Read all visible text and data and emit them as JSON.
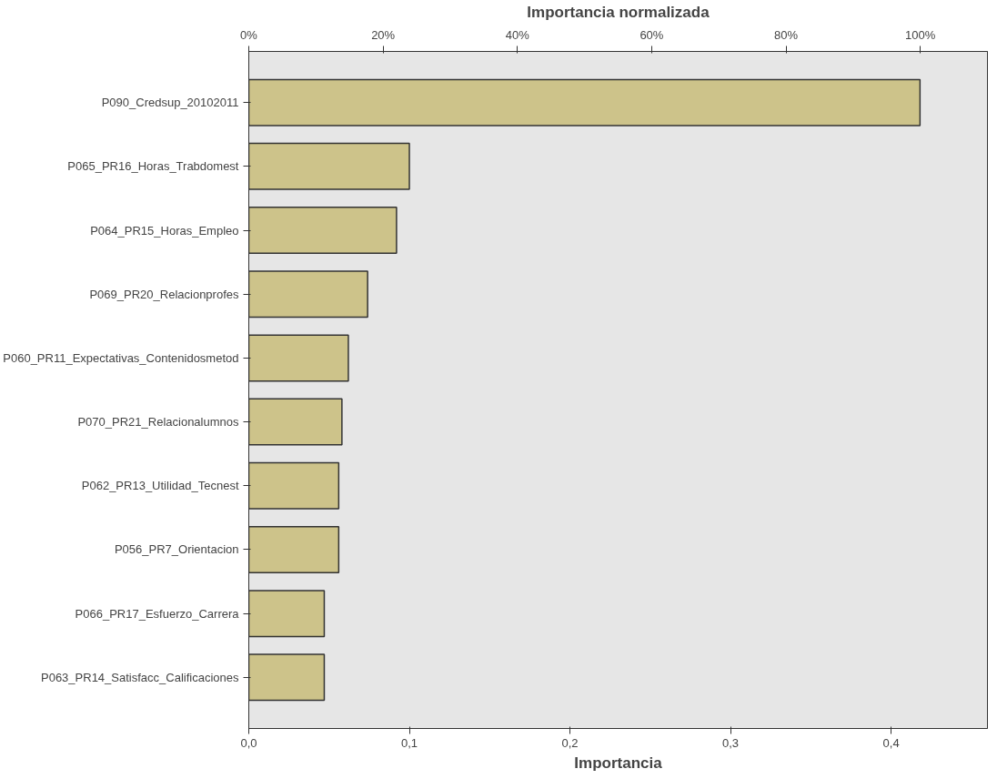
{
  "chart_data": {
    "type": "bar",
    "orientation": "horizontal",
    "x2label": "Importancia normalizada",
    "xlabel": "Importancia",
    "categories": [
      "P090_Credsup_20102011",
      "P065_PR16_Horas_Trabdomest",
      "P064_PR15_Horas_Empleo",
      "P069_PR20_Relacionprofes",
      "P060_PR11_Expectativas_Contenidosmetod",
      "P070_PR21_Relacionalumnos",
      "P062_PR13_Utilidad_Tecnest",
      "P056_PR7_Orientacion",
      "P066_PR17_Esfuerzo_Carrera",
      "P063_PR14_Satisfacc_Calificaciones"
    ],
    "values": [
      0.418,
      0.1,
      0.092,
      0.074,
      0.062,
      0.058,
      0.056,
      0.056,
      0.047,
      0.047
    ],
    "color": "#cdc38a",
    "xlim": [
      0,
      0.46
    ],
    "xticks": [
      {
        "value": 0,
        "label": "0,0"
      },
      {
        "value": 0.1,
        "label": "0,1"
      },
      {
        "value": 0.2,
        "label": "0,2"
      },
      {
        "value": 0.3,
        "label": "0,3"
      },
      {
        "value": 0.4,
        "label": "0,4"
      }
    ],
    "x2lim": [
      0,
      110
    ],
    "x2ticks": [
      {
        "value": 0,
        "label": "0%"
      },
      {
        "value": 20,
        "label": "20%"
      },
      {
        "value": 40,
        "label": "40%"
      },
      {
        "value": 60,
        "label": "60%"
      },
      {
        "value": 80,
        "label": "80%"
      },
      {
        "value": 100,
        "label": "100%"
      }
    ],
    "grid": false
  }
}
